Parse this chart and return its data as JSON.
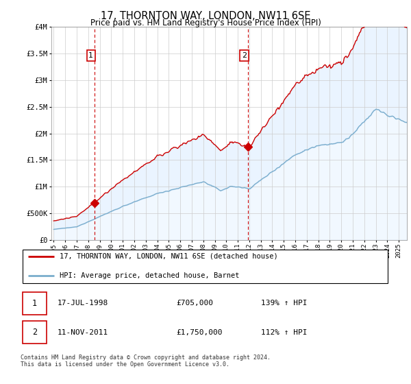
{
  "title": "17, THORNTON WAY, LONDON, NW11 6SE",
  "subtitle": "Price paid vs. HM Land Registry's House Price Index (HPI)",
  "legend_line1": "17, THORNTON WAY, LONDON, NW11 6SE (detached house)",
  "legend_line2": "HPI: Average price, detached house, Barnet",
  "sale1_label": "1",
  "sale1_date": "17-JUL-1998",
  "sale1_price": "£705,000",
  "sale1_hpi": "139% ↑ HPI",
  "sale1_year": 1998.54,
  "sale1_value": 705000,
  "sale2_label": "2",
  "sale2_date": "11-NOV-2011",
  "sale2_price": "£1,750,000",
  "sale2_hpi": "112% ↑ HPI",
  "sale2_year": 2011.86,
  "sale2_value": 1750000,
  "red_color": "#cc0000",
  "blue_color": "#7aadcc",
  "fill_color": "#ddeeff",
  "marker_color": "#cc0000",
  "ylim": [
    0,
    4000000
  ],
  "xlim_start": 1994.8,
  "xlim_end": 2025.7,
  "footer": "Contains HM Land Registry data © Crown copyright and database right 2024.\nThis data is licensed under the Open Government Licence v3.0.",
  "background_color": "#ffffff",
  "grid_color": "#cccccc"
}
